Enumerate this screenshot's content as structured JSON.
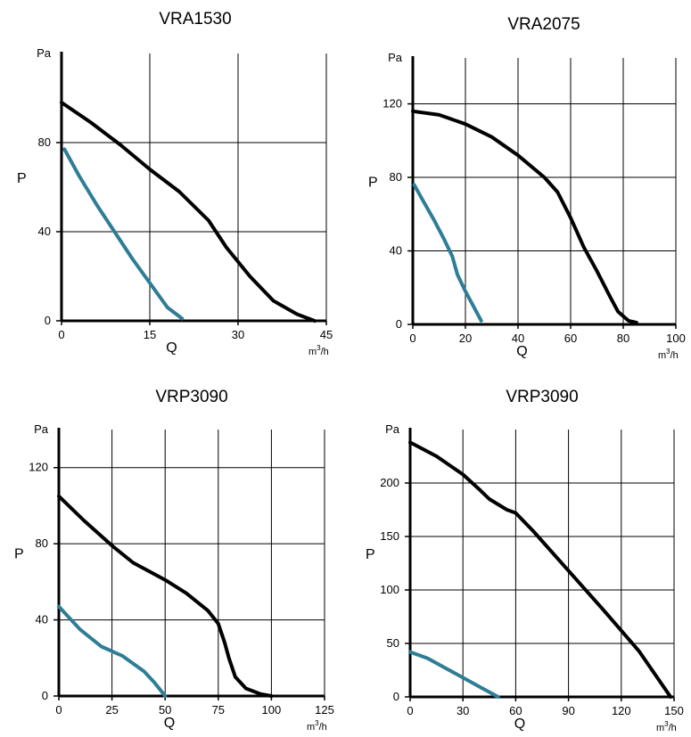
{
  "chart_data": [
    {
      "type": "line",
      "title": "VRA1530",
      "xlabel": "Q",
      "ylabel": "P",
      "x_unit": "m3/h",
      "y_unit": "Pa",
      "xlim": [
        0,
        45
      ],
      "ylim": [
        0,
        120
      ],
      "x_ticks": [
        0,
        15,
        30,
        45
      ],
      "y_ticks": [
        0,
        40,
        80
      ],
      "grid": true,
      "series": [
        {
          "color": "#000000",
          "x": [
            0,
            5,
            10,
            15,
            20,
            25,
            28,
            32,
            36,
            40,
            43
          ],
          "y": [
            98,
            89,
            79,
            68,
            58,
            45,
            33,
            20,
            9,
            3,
            0
          ]
        },
        {
          "color": "#2e7d96",
          "x": [
            0.5,
            3,
            6,
            9,
            12,
            15,
            18,
            20.5
          ],
          "y": [
            77,
            65,
            52,
            40,
            28,
            17,
            6,
            1
          ]
        }
      ]
    },
    {
      "type": "line",
      "title": "VRA2075",
      "xlabel": "Q",
      "ylabel": "P",
      "x_unit": "m3/h",
      "y_unit": "Pa",
      "xlim": [
        0,
        100
      ],
      "ylim": [
        0,
        145
      ],
      "x_ticks": [
        0,
        20,
        40,
        60,
        80,
        100
      ],
      "y_ticks": [
        0,
        40,
        80,
        120
      ],
      "grid": true,
      "series": [
        {
          "color": "#000000",
          "x": [
            0,
            10,
            20,
            30,
            40,
            50,
            55,
            60,
            65,
            70,
            75,
            78,
            82,
            85
          ],
          "y": [
            116,
            114,
            109,
            102,
            92,
            80,
            72,
            58,
            42,
            29,
            15,
            7,
            2,
            1
          ]
        },
        {
          "color": "#2e7d96",
          "x": [
            0.5,
            4,
            8,
            12,
            15,
            17,
            20,
            23,
            26
          ],
          "y": [
            76,
            67,
            57,
            46,
            37,
            27,
            18,
            10,
            2
          ]
        }
      ]
    },
    {
      "type": "line",
      "title": "VRP3090",
      "xlabel": "Q",
      "ylabel": "P",
      "x_unit": "m3/h",
      "y_unit": "Pa",
      "xlim": [
        0,
        125
      ],
      "ylim": [
        0,
        140
      ],
      "x_ticks": [
        0,
        25,
        50,
        75,
        100,
        125
      ],
      "y_ticks": [
        0,
        40,
        80,
        120
      ],
      "grid": true,
      "series": [
        {
          "color": "#000000",
          "x": [
            0,
            12,
            25,
            35,
            50,
            60,
            70,
            75,
            78,
            80,
            83,
            88,
            95,
            100
          ],
          "y": [
            105,
            92,
            79,
            70,
            61,
            54,
            45,
            38,
            28,
            20,
            10,
            4,
            1,
            0
          ]
        },
        {
          "color": "#2e7d96",
          "x": [
            0,
            10,
            20,
            30,
            40,
            45,
            50
          ],
          "y": [
            47,
            35,
            26,
            21,
            13,
            7,
            0
          ]
        }
      ]
    },
    {
      "type": "line",
      "title": "VRP3090",
      "xlabel": "Q",
      "ylabel": "P",
      "x_unit": "m3/h",
      "y_unit": "Pa",
      "xlim": [
        0,
        150
      ],
      "ylim": [
        0,
        250
      ],
      "x_ticks": [
        0,
        30,
        60,
        90,
        120,
        150
      ],
      "y_ticks": [
        0,
        50,
        100,
        150,
        200
      ],
      "grid": true,
      "series": [
        {
          "color": "#000000",
          "x": [
            0,
            15,
            30,
            40,
            45,
            55,
            60,
            70,
            90,
            110,
            130,
            148
          ],
          "y": [
            238,
            225,
            208,
            193,
            185,
            175,
            172,
            155,
            118,
            81,
            43,
            0
          ]
        },
        {
          "color": "#2e7d96",
          "x": [
            0,
            10,
            20,
            30,
            40,
            50
          ],
          "y": [
            42,
            36,
            27,
            18,
            9,
            0
          ]
        }
      ]
    }
  ]
}
